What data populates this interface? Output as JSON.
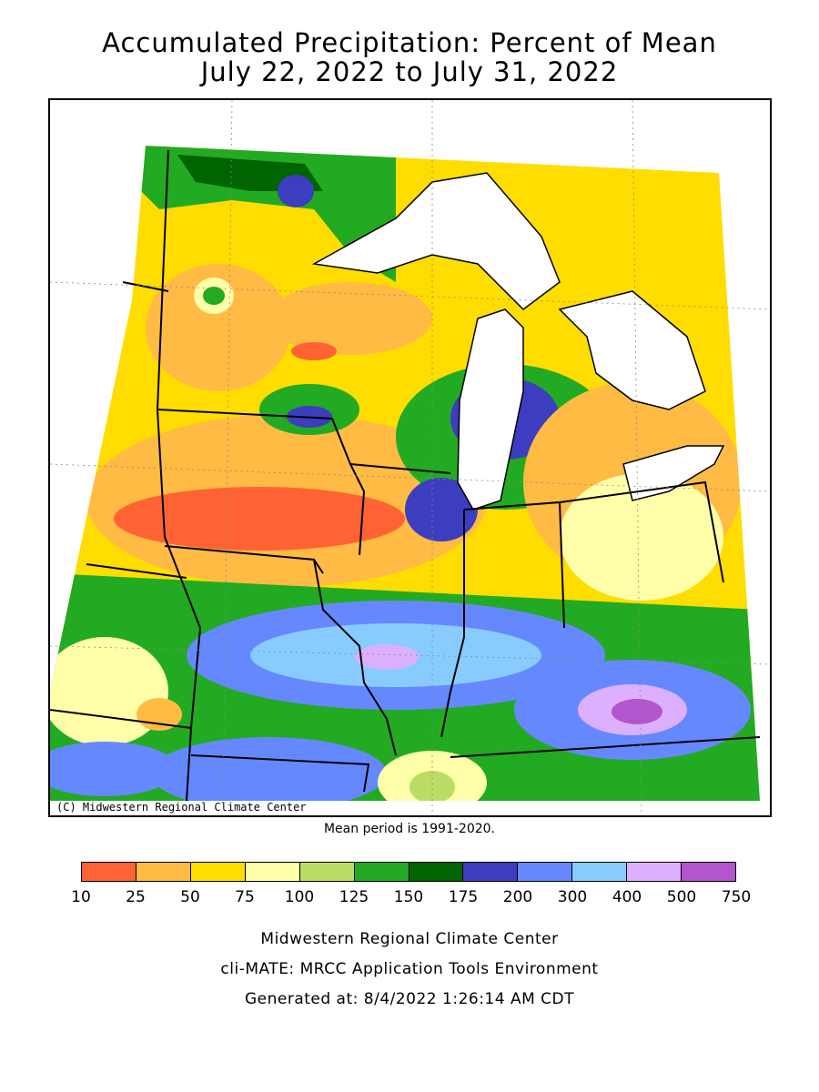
{
  "title": {
    "line1": "Accumulated Precipitation: Percent of Mean",
    "line2": "July 22, 2022 to July 31, 2022"
  },
  "map": {
    "copyright": "(C) Midwestern Regional Climate Center"
  },
  "mean_period": "Mean period is 1991-2020.",
  "legend": {
    "colors": [
      "#ff6333",
      "#ffbb44",
      "#ffdd00",
      "#ffffaa",
      "#bbdd66",
      "#22aa22",
      "#006400",
      "#3d3dbf",
      "#6688ff",
      "#88ccff",
      "#ddb0ff",
      "#b355cc"
    ],
    "labels": [
      "10",
      "25",
      "50",
      "75",
      "100",
      "125",
      "150",
      "175",
      "200",
      "300",
      "400",
      "500",
      "750"
    ]
  },
  "credits": {
    "line1": "Midwestern Regional Climate Center",
    "line2": "cli-MATE: MRCC Application Tools Environment",
    "line3": "Generated at: 8/4/2022 1:26:14 AM CDT"
  }
}
